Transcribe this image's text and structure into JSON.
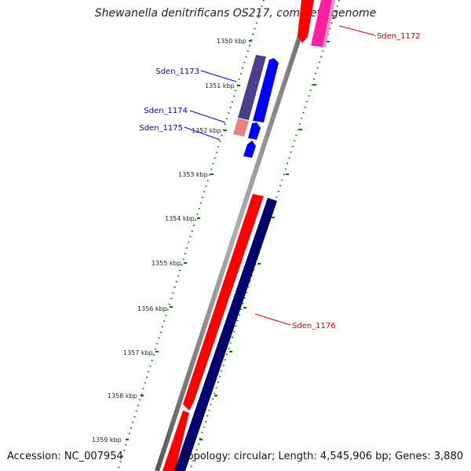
{
  "title": "Shewanella denitrificans OS217, complete genome",
  "footer": {
    "accession": "Accession: NC_007954",
    "topology": "Topology: circular; Length: 4,545,906 bp; Genes: 3,880"
  },
  "ruler": {
    "labels": [
      "1350 kbp",
      "1351 kbp",
      "1352 kbp",
      "1353 kbp",
      "1354 kbp",
      "1355 kbp",
      "1356 kbp",
      "1357 kbp",
      "1358 kbp",
      "1359 kbp"
    ]
  },
  "genes": [
    {
      "name": "Sden_1172",
      "label_color": "#cc0000"
    },
    {
      "name": "Sden_1173",
      "label_color": "#0000cc"
    },
    {
      "name": "Sden_1174",
      "label_color": "#0000cc"
    },
    {
      "name": "Sden_1175",
      "label_color": "#0000cc"
    },
    {
      "name": "Sden_1176",
      "label_color": "#cc0000"
    }
  ],
  "colors": {
    "backbone": "#8c8c8c",
    "forward_cds": "#ff0000",
    "reverse_cds": "#0000ff",
    "magenta_cds": "#ff1fa0",
    "dark_navy": "#000070",
    "slate_purple": "#4a3f88",
    "salmon": "#e88080",
    "ruler_green": "#007a00"
  }
}
